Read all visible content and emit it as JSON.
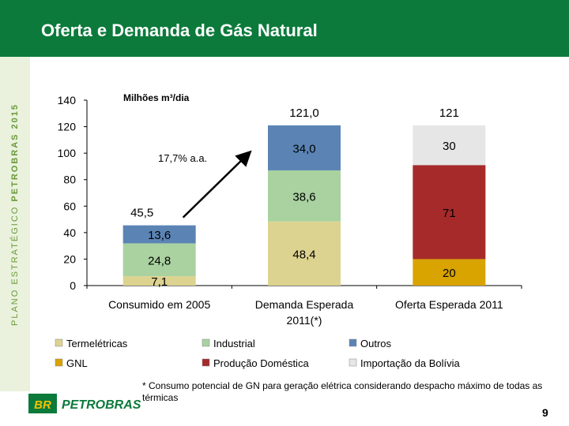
{
  "page": {
    "title": "Oferta e Demanda de Gás Natural",
    "page_number": "9"
  },
  "branding": {
    "side_text_part1": "PLANO ESTRATÉGICO",
    "side_text_part2": "PETROBRAS 2015",
    "logo_badge": "BR",
    "logo_text": "PETROBRAS"
  },
  "footnote": "* Consumo potencial de GN para geração elétrica considerando despacho máximo de todas as térmicas",
  "annotation": {
    "growth_label": "17,7% a.a."
  },
  "chart_data": {
    "type": "bar",
    "stacked": true,
    "unit_label": "Milhões m³/dia",
    "ylim": [
      0,
      140
    ],
    "yticks": [
      0,
      20,
      40,
      60,
      80,
      100,
      120,
      140
    ],
    "grid": false,
    "legend_position": "bottom",
    "categories": [
      [
        "Consumido em 2005"
      ],
      [
        "Demanda Esperada",
        "2011(*)"
      ],
      [
        "Oferta Esperada 2011"
      ]
    ],
    "totals": [
      "45,5",
      "121,0",
      "121"
    ],
    "series": [
      {
        "name": "Termelétricas",
        "color": "#ddd390",
        "values": [
          7.1,
          48.4,
          0
        ],
        "labels": [
          "7,1",
          "48,4",
          ""
        ]
      },
      {
        "name": "Industrial",
        "color": "#a9d2a0",
        "values": [
          24.8,
          38.6,
          0
        ],
        "labels": [
          "24,8",
          "38,6",
          ""
        ]
      },
      {
        "name": "Outros",
        "color": "#5b84b5",
        "values": [
          13.6,
          34.0,
          0
        ],
        "labels": [
          "13,6",
          "34,0",
          ""
        ]
      },
      {
        "name": "GNL",
        "color": "#d9a300",
        "values": [
          0,
          0,
          20
        ],
        "labels": [
          "",
          "",
          "20"
        ]
      },
      {
        "name": "Produção Doméstica",
        "color": "#a62a2a",
        "values": [
          0,
          0,
          71
        ],
        "labels": [
          "",
          "",
          "71"
        ]
      },
      {
        "name": "Importação da Bolívia",
        "color": "#e6e6e6",
        "values": [
          0,
          0,
          30
        ],
        "labels": [
          "",
          "",
          "30"
        ]
      }
    ]
  }
}
